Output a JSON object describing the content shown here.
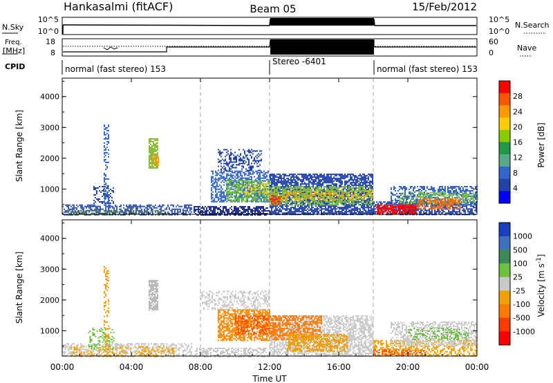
{
  "header": {
    "station": "Hankasalmi (fitACF)",
    "beam": "Beam 05",
    "date": "15/Feb/2012"
  },
  "strip": {
    "nsky_label": "N.Sky",
    "nsky_ticks": [
      "10^5",
      "10^0"
    ],
    "nsearch_label": "N.Search",
    "nsearch_ticks": [
      "10^5",
      "10^0"
    ],
    "freq_label_line1": "Freq.",
    "freq_label_line2": "[MHz]",
    "freq_ticks": [
      "18",
      "8"
    ],
    "nave_label": "Nave",
    "nave_ticks": [
      "60",
      "0"
    ],
    "cpid_label": "CPID",
    "cpid_segments": [
      {
        "text": "normal (fast stereo) 153",
        "start_hour": 0
      },
      {
        "text": "Stereo -6401",
        "start_hour": 12
      },
      {
        "text": "normal (fast stereo) 153",
        "start_hour": 18
      }
    ]
  },
  "time_axis": {
    "label": "Time UT",
    "ticks": [
      "00:00",
      "04:00",
      "08:00",
      "12:00",
      "16:00",
      "20:00",
      "00:00"
    ],
    "range_hours": [
      0,
      24
    ]
  },
  "chart_data": [
    {
      "type": "heatmap",
      "quantity": "power",
      "ylabel": "Slant Range [km]",
      "yticks": [
        1000,
        2000,
        3000,
        4000
      ],
      "ylim": [
        180,
        4600
      ],
      "xlim_hours": [
        0,
        24
      ],
      "colorbar_label": "Power [dB]",
      "colorbar_ticks": [
        "28",
        "24",
        "20",
        "16",
        "12",
        "8",
        "4"
      ],
      "colorbar_colors": [
        "#ff0000",
        "#ff5500",
        "#ff9900",
        "#ffcc00",
        "#88cc00",
        "#229944",
        "#55aa88",
        "#3366cc",
        "#2244aa",
        "#0000ff"
      ],
      "regions": [
        {
          "t0": 0.0,
          "t1": 7.5,
          "r0": 180,
          "r1": 500,
          "color": "#3355aa",
          "density": 0.55
        },
        {
          "t0": 0.3,
          "t1": 6.0,
          "r0": 180,
          "r1": 320,
          "color": "#447744",
          "density": 0.35
        },
        {
          "t0": 1.8,
          "t1": 3.0,
          "r0": 550,
          "r1": 1100,
          "color": "#2244aa",
          "density": 0.35
        },
        {
          "t0": 2.4,
          "t1": 2.7,
          "r0": 400,
          "r1": 3100,
          "color": "#3366cc",
          "density": 0.4
        },
        {
          "t0": 5.0,
          "t1": 5.5,
          "r0": 1700,
          "r1": 2650,
          "color": "#88bb33",
          "density": 0.85
        },
        {
          "t0": 5.2,
          "t1": 5.6,
          "r0": 1750,
          "r1": 2100,
          "color": "#ff9900",
          "density": 0.6
        },
        {
          "t0": 7.6,
          "t1": 12.0,
          "r0": 180,
          "r1": 450,
          "color": "#223388",
          "density": 0.7
        },
        {
          "t0": 8.6,
          "t1": 12.0,
          "r0": 600,
          "r1": 1600,
          "color": "#3366cc",
          "density": 0.6
        },
        {
          "t0": 9.5,
          "t1": 12.0,
          "r0": 600,
          "r1": 1300,
          "color": "#66bb33",
          "density": 0.5
        },
        {
          "t0": 10.5,
          "t1": 12.0,
          "r0": 800,
          "r1": 1200,
          "color": "#ffcc00",
          "density": 0.3
        },
        {
          "t0": 9.0,
          "t1": 11.5,
          "r0": 1600,
          "r1": 2300,
          "color": "#2244aa",
          "density": 0.35
        },
        {
          "t0": 12.0,
          "t1": 18.0,
          "r0": 180,
          "r1": 1500,
          "color": "#2244aa",
          "density": 0.75
        },
        {
          "t0": 12.0,
          "t1": 18.0,
          "r0": 500,
          "r1": 1100,
          "color": "#77bb44",
          "density": 0.55
        },
        {
          "t0": 12.0,
          "t1": 18.0,
          "r0": 650,
          "r1": 950,
          "color": "#ffaa00",
          "density": 0.35
        },
        {
          "t0": 12.0,
          "t1": 12.6,
          "r0": 500,
          "r1": 800,
          "color": "#ff3300",
          "density": 0.6
        },
        {
          "t0": 18.0,
          "t1": 24.0,
          "r0": 180,
          "r1": 600,
          "color": "#2244aa",
          "density": 0.6
        },
        {
          "t0": 19.0,
          "t1": 24.0,
          "r0": 500,
          "r1": 1100,
          "color": "#3366cc",
          "density": 0.5
        },
        {
          "t0": 19.5,
          "t1": 24.0,
          "r0": 500,
          "r1": 900,
          "color": "#77bb44",
          "density": 0.4
        },
        {
          "t0": 18.2,
          "t1": 20.5,
          "r0": 200,
          "r1": 500,
          "color": "#ff0000",
          "density": 0.8
        },
        {
          "t0": 20.5,
          "t1": 23.0,
          "r0": 380,
          "r1": 700,
          "color": "#ff6600",
          "density": 0.55
        }
      ]
    },
    {
      "type": "heatmap",
      "quantity": "velocity",
      "ylabel": "Slant Range [km]",
      "yticks": [
        1000,
        2000,
        3000,
        4000
      ],
      "ylim": [
        180,
        4600
      ],
      "xlim_hours": [
        0,
        24
      ],
      "colorbar_label": "Velocity [m s^-1]",
      "colorbar_ticks": [
        "1000",
        "500",
        "100",
        "25",
        "-25",
        "-100",
        "-500",
        "-1000"
      ],
      "colorbar_colors": [
        "#1a3fbf",
        "#3f6fbf",
        "#3b8a57",
        "#6cc03c",
        "#c8c8c8",
        "#f0a000",
        "#ff7a00",
        "#ff3a00",
        "#ff0000"
      ],
      "regions": [
        {
          "t0": 0.0,
          "t1": 7.5,
          "r0": 180,
          "r1": 600,
          "color": "#c8c8c8",
          "density": 0.45
        },
        {
          "t0": 0.5,
          "t1": 6.5,
          "r0": 180,
          "r1": 500,
          "color": "#f0a000",
          "density": 0.3
        },
        {
          "t0": 1.5,
          "t1": 3.0,
          "r0": 400,
          "r1": 1100,
          "color": "#6cc03c",
          "density": 0.3
        },
        {
          "t0": 2.4,
          "t1": 2.7,
          "r0": 400,
          "r1": 3100,
          "color": "#ff9900",
          "density": 0.35
        },
        {
          "t0": 5.0,
          "t1": 5.5,
          "r0": 1700,
          "r1": 2650,
          "color": "#b8b8b8",
          "density": 0.8
        },
        {
          "t0": 7.6,
          "t1": 12.0,
          "r0": 180,
          "r1": 450,
          "color": "#c8c8c8",
          "density": 0.55
        },
        {
          "t0": 9.0,
          "t1": 12.0,
          "r0": 700,
          "r1": 1700,
          "color": "#ff8a00",
          "density": 0.7
        },
        {
          "t0": 10.0,
          "t1": 12.0,
          "r0": 900,
          "r1": 1500,
          "color": "#ff5500",
          "density": 0.45
        },
        {
          "t0": 8.0,
          "t1": 12.0,
          "r0": 1700,
          "r1": 2300,
          "color": "#c8c8c8",
          "density": 0.4
        },
        {
          "t0": 12.0,
          "t1": 18.0,
          "r0": 180,
          "r1": 1500,
          "color": "#c8c8c8",
          "density": 0.6
        },
        {
          "t0": 12.0,
          "t1": 15.0,
          "r0": 700,
          "r1": 1500,
          "color": "#ff7a00",
          "density": 0.6
        },
        {
          "t0": 13.0,
          "t1": 16.5,
          "r0": 350,
          "r1": 900,
          "color": "#f0a000",
          "density": 0.6
        },
        {
          "t0": 18.0,
          "t1": 24.0,
          "r0": 180,
          "r1": 700,
          "color": "#f0a000",
          "density": 0.45
        },
        {
          "t0": 19.0,
          "t1": 24.0,
          "r0": 500,
          "r1": 1300,
          "color": "#c8c8c8",
          "density": 0.5
        },
        {
          "t0": 20.0,
          "t1": 23.5,
          "r0": 700,
          "r1": 1100,
          "color": "#6cc03c",
          "density": 0.3
        },
        {
          "t0": 18.0,
          "t1": 21.0,
          "r0": 180,
          "r1": 400,
          "color": "#ff5500",
          "density": 0.4
        }
      ]
    }
  ]
}
